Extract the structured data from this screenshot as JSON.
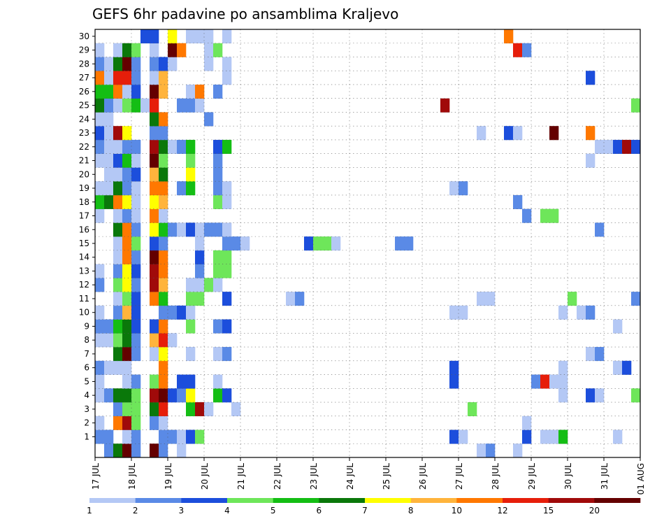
{
  "chart_data": {
    "type": "heatmap",
    "title": "GEFS 6hr padavine po ansamblima Kraljevo",
    "y_categories": [
      "1",
      "2",
      "3",
      "4",
      "5",
      "6",
      "7",
      "8",
      "9",
      "10",
      "11",
      "12",
      "13",
      "14",
      "15",
      "16",
      "17",
      "18",
      "19",
      "20",
      "21",
      "22",
      "23",
      "24",
      "25",
      "26",
      "27",
      "28",
      "29",
      "30"
    ],
    "x_tick_labels": [
      "17 JUL",
      "18 JUL",
      "19 JUL",
      "20 JUL",
      "21 JUL",
      "22 JUL",
      "23 JUL",
      "24 JUL",
      "25 JUL",
      "26 JUL",
      "27 JUL",
      "28 JUL",
      "29 JUL",
      "30 JUL",
      "31 JUL",
      "01 AUG"
    ],
    "x_range": [
      "17 JUL 00Z",
      "01 AUG 00Z"
    ],
    "time_step_hours": 6,
    "grid": "dotted",
    "colorbar": {
      "position": "bottom",
      "labels": [
        "1",
        "2",
        "3",
        "4",
        "5",
        "6",
        "7",
        "8",
        "10",
        "12",
        "15",
        "20"
      ],
      "colors": [
        "#b4c8f5",
        "#5a8ae6",
        "#1c4edc",
        "#6ee65a",
        "#14be14",
        "#0a780a",
        "#ffff00",
        "#ffb43c",
        "#ff7800",
        "#e61e0a",
        "#a00a0a",
        "#640000"
      ]
    },
    "cells_by_member": {
      "30": [
        [
          5,
          2
        ],
        [
          6,
          2
        ],
        [
          8,
          6
        ],
        [
          10,
          0
        ],
        [
          11,
          0
        ],
        [
          12,
          0
        ],
        [
          14,
          0
        ],
        [
          45,
          8
        ]
      ],
      "29": [
        [
          0,
          0
        ],
        [
          2,
          0
        ],
        [
          3,
          5
        ],
        [
          4,
          3
        ],
        [
          6,
          0
        ],
        [
          8,
          11
        ],
        [
          9,
          8
        ],
        [
          12,
          0
        ],
        [
          13,
          3
        ],
        [
          46,
          9
        ],
        [
          47,
          1
        ]
      ],
      "28": [
        [
          0,
          1
        ],
        [
          1,
          0
        ],
        [
          2,
          5
        ],
        [
          3,
          11
        ],
        [
          4,
          1
        ],
        [
          6,
          1
        ],
        [
          7,
          2
        ],
        [
          8,
          0
        ],
        [
          12,
          0
        ],
        [
          14,
          0
        ]
      ],
      "27": [
        [
          0,
          8
        ],
        [
          1,
          0
        ],
        [
          2,
          9
        ],
        [
          3,
          9
        ],
        [
          4,
          1
        ],
        [
          6,
          0
        ],
        [
          7,
          7
        ],
        [
          14,
          0
        ],
        [
          54,
          2
        ]
      ],
      "26": [
        [
          0,
          4
        ],
        [
          1,
          4
        ],
        [
          2,
          8
        ],
        [
          3,
          0
        ],
        [
          4,
          2
        ],
        [
          6,
          11
        ],
        [
          7,
          7
        ],
        [
          10,
          0
        ],
        [
          11,
          8
        ],
        [
          13,
          1
        ]
      ],
      "25": [
        [
          0,
          5
        ],
        [
          1,
          1
        ],
        [
          2,
          0
        ],
        [
          3,
          3
        ],
        [
          4,
          4
        ],
        [
          5,
          0
        ],
        [
          6,
          9
        ],
        [
          9,
          1
        ],
        [
          10,
          1
        ],
        [
          11,
          0
        ],
        [
          38,
          10
        ],
        [
          59,
          3
        ]
      ],
      "24": [
        [
          0,
          0
        ],
        [
          1,
          0
        ],
        [
          6,
          5
        ],
        [
          7,
          8
        ],
        [
          12,
          1
        ]
      ],
      "23": [
        [
          0,
          2
        ],
        [
          1,
          0
        ],
        [
          2,
          10
        ],
        [
          3,
          6
        ],
        [
          6,
          1
        ],
        [
          7,
          1
        ],
        [
          42,
          0
        ],
        [
          45,
          2
        ],
        [
          46,
          0
        ],
        [
          50,
          11
        ],
        [
          54,
          8
        ]
      ],
      "22": [
        [
          0,
          1
        ],
        [
          1,
          0
        ],
        [
          2,
          0
        ],
        [
          3,
          1
        ],
        [
          4,
          1
        ],
        [
          6,
          10
        ],
        [
          7,
          5
        ],
        [
          8,
          0
        ],
        [
          9,
          1
        ],
        [
          10,
          4
        ],
        [
          13,
          2
        ],
        [
          14,
          4
        ],
        [
          55,
          0
        ],
        [
          56,
          0
        ],
        [
          57,
          2
        ],
        [
          58,
          10
        ],
        [
          59,
          2
        ]
      ],
      "21": [
        [
          0,
          0
        ],
        [
          1,
          0
        ],
        [
          2,
          2
        ],
        [
          3,
          4
        ],
        [
          4,
          0
        ],
        [
          6,
          11
        ],
        [
          7,
          3
        ],
        [
          10,
          3
        ],
        [
          13,
          1
        ],
        [
          54,
          0
        ]
      ],
      "20": [
        [
          1,
          0
        ],
        [
          2,
          0
        ],
        [
          3,
          1
        ],
        [
          4,
          2
        ],
        [
          6,
          7
        ],
        [
          7,
          5
        ],
        [
          10,
          6
        ],
        [
          13,
          1
        ]
      ],
      "19": [
        [
          0,
          0
        ],
        [
          1,
          0
        ],
        [
          2,
          5
        ],
        [
          3,
          1
        ],
        [
          4,
          0
        ],
        [
          6,
          8
        ],
        [
          7,
          8
        ],
        [
          9,
          1
        ],
        [
          10,
          4
        ],
        [
          13,
          1
        ],
        [
          14,
          0
        ],
        [
          39,
          0
        ],
        [
          40,
          1
        ]
      ],
      "18": [
        [
          0,
          4
        ],
        [
          1,
          5
        ],
        [
          2,
          8
        ],
        [
          3,
          6
        ],
        [
          4,
          0
        ],
        [
          6,
          6
        ],
        [
          7,
          7
        ],
        [
          13,
          3
        ],
        [
          14,
          0
        ],
        [
          46,
          1
        ]
      ],
      "17": [
        [
          0,
          0
        ],
        [
          2,
          0
        ],
        [
          3,
          1
        ],
        [
          4,
          0
        ],
        [
          6,
          8
        ],
        [
          7,
          0
        ],
        [
          47,
          1
        ],
        [
          49,
          3
        ],
        [
          50,
          3
        ]
      ],
      "16": [
        [
          2,
          5
        ],
        [
          3,
          8
        ],
        [
          4,
          1
        ],
        [
          6,
          6
        ],
        [
          7,
          4
        ],
        [
          8,
          1
        ],
        [
          9,
          0
        ],
        [
          10,
          2
        ],
        [
          11,
          0
        ],
        [
          12,
          1
        ],
        [
          13,
          1
        ],
        [
          14,
          0
        ],
        [
          55,
          1
        ]
      ],
      "15": [
        [
          2,
          0
        ],
        [
          3,
          8
        ],
        [
          4,
          3
        ],
        [
          6,
          2
        ],
        [
          7,
          1
        ],
        [
          11,
          0
        ],
        [
          14,
          1
        ],
        [
          15,
          1
        ],
        [
          16,
          0
        ],
        [
          23,
          2
        ],
        [
          24,
          3
        ],
        [
          25,
          3
        ],
        [
          26,
          0
        ],
        [
          33,
          1
        ],
        [
          34,
          1
        ]
      ],
      "14": [
        [
          2,
          0
        ],
        [
          3,
          8
        ],
        [
          4,
          1
        ],
        [
          6,
          11
        ],
        [
          7,
          8
        ],
        [
          11,
          2
        ],
        [
          13,
          3
        ],
        [
          14,
          3
        ]
      ],
      "13": [
        [
          0,
          0
        ],
        [
          2,
          1
        ],
        [
          3,
          6
        ],
        [
          4,
          2
        ],
        [
          6,
          10
        ],
        [
          7,
          8
        ],
        [
          11,
          1
        ],
        [
          13,
          3
        ],
        [
          14,
          3
        ]
      ],
      "12": [
        [
          0,
          1
        ],
        [
          2,
          3
        ],
        [
          3,
          6
        ],
        [
          4,
          1
        ],
        [
          6,
          10
        ],
        [
          7,
          7
        ],
        [
          10,
          0
        ],
        [
          11,
          0
        ],
        [
          12,
          3
        ],
        [
          13,
          0
        ]
      ],
      "11": [
        [
          2,
          0
        ],
        [
          3,
          3
        ],
        [
          4,
          2
        ],
        [
          6,
          8
        ],
        [
          7,
          4
        ],
        [
          10,
          3
        ],
        [
          11,
          3
        ],
        [
          14,
          2
        ],
        [
          21,
          0
        ],
        [
          22,
          1
        ],
        [
          42,
          0
        ],
        [
          43,
          0
        ],
        [
          52,
          3
        ],
        [
          59,
          1
        ]
      ],
      "10": [
        [
          0,
          0
        ],
        [
          2,
          1
        ],
        [
          3,
          7
        ],
        [
          4,
          2
        ],
        [
          7,
          1
        ],
        [
          8,
          1
        ],
        [
          9,
          2
        ],
        [
          10,
          0
        ],
        [
          39,
          0
        ],
        [
          40,
          0
        ],
        [
          51,
          0
        ],
        [
          53,
          0
        ],
        [
          54,
          1
        ]
      ],
      "9": [
        [
          0,
          1
        ],
        [
          1,
          1
        ],
        [
          2,
          4
        ],
        [
          3,
          5
        ],
        [
          4,
          2
        ],
        [
          6,
          2
        ],
        [
          7,
          8
        ],
        [
          10,
          3
        ],
        [
          13,
          1
        ],
        [
          14,
          2
        ],
        [
          57,
          0
        ]
      ],
      "8": [
        [
          0,
          0
        ],
        [
          1,
          0
        ],
        [
          2,
          3
        ],
        [
          3,
          5
        ],
        [
          4,
          1
        ],
        [
          6,
          7
        ],
        [
          7,
          9
        ],
        [
          8,
          0
        ]
      ],
      "7": [
        [
          2,
          5
        ],
        [
          3,
          11
        ],
        [
          4,
          1
        ],
        [
          6,
          0
        ],
        [
          7,
          6
        ],
        [
          10,
          0
        ],
        [
          13,
          0
        ],
        [
          14,
          1
        ],
        [
          54,
          0
        ],
        [
          55,
          1
        ]
      ],
      "6": [
        [
          0,
          1
        ],
        [
          1,
          0
        ],
        [
          2,
          0
        ],
        [
          3,
          0
        ],
        [
          7,
          8
        ],
        [
          39,
          2
        ],
        [
          51,
          0
        ],
        [
          57,
          0
        ],
        [
          58,
          2
        ]
      ],
      "5": [
        [
          0,
          0
        ],
        [
          3,
          0
        ],
        [
          4,
          1
        ],
        [
          6,
          3
        ],
        [
          7,
          8
        ],
        [
          9,
          2
        ],
        [
          10,
          2
        ],
        [
          13,
          0
        ],
        [
          39,
          2
        ],
        [
          48,
          1
        ],
        [
          49,
          9
        ],
        [
          50,
          0
        ],
        [
          51,
          0
        ]
      ],
      "4": [
        [
          0,
          0
        ],
        [
          1,
          1
        ],
        [
          2,
          5
        ],
        [
          3,
          5
        ],
        [
          4,
          3
        ],
        [
          6,
          10
        ],
        [
          7,
          11
        ],
        [
          8,
          2
        ],
        [
          9,
          1
        ],
        [
          10,
          6
        ],
        [
          13,
          4
        ],
        [
          14,
          2
        ],
        [
          51,
          0
        ],
        [
          54,
          2
        ],
        [
          55,
          0
        ],
        [
          59,
          3
        ]
      ],
      "3": [
        [
          2,
          1
        ],
        [
          3,
          3
        ],
        [
          4,
          3
        ],
        [
          6,
          5
        ],
        [
          7,
          9
        ],
        [
          10,
          4
        ],
        [
          11,
          10
        ],
        [
          12,
          0
        ],
        [
          15,
          0
        ],
        [
          41,
          3
        ]
      ],
      "2": [
        [
          0,
          0
        ],
        [
          2,
          8
        ],
        [
          3,
          10
        ],
        [
          4,
          3
        ],
        [
          6,
          1
        ],
        [
          7,
          0
        ],
        [
          47,
          0
        ]
      ],
      "1": [
        [
          0,
          1
        ],
        [
          1,
          1
        ],
        [
          3,
          0
        ],
        [
          4,
          1
        ],
        [
          7,
          1
        ],
        [
          8,
          1
        ],
        [
          9,
          0
        ],
        [
          10,
          2
        ],
        [
          11,
          3
        ],
        [
          39,
          2
        ],
        [
          40,
          0
        ],
        [
          47,
          2
        ],
        [
          49,
          0
        ],
        [
          50,
          0
        ],
        [
          51,
          4
        ],
        [
          57,
          0
        ]
      ],
      "0": [
        [
          1,
          1
        ],
        [
          2,
          5
        ],
        [
          3,
          11
        ],
        [
          4,
          1
        ],
        [
          6,
          11
        ],
        [
          7,
          1
        ],
        [
          9,
          0
        ],
        [
          42,
          0
        ],
        [
          43,
          1
        ],
        [
          46,
          0
        ]
      ]
    }
  }
}
